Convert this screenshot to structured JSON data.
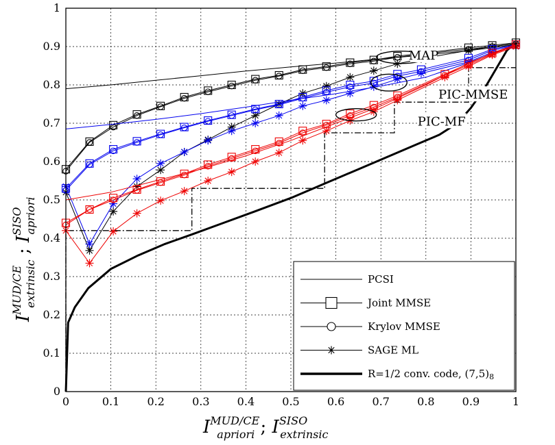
{
  "chart_data": {
    "type": "line",
    "xlim": [
      0,
      1
    ],
    "ylim": [
      0,
      1
    ],
    "grid": true,
    "legend_position": "bottom-right",
    "x_ticks": [
      "0",
      "0.1",
      "0.2",
      "0.3",
      "0.4",
      "0.5",
      "0.6",
      "0.7",
      "0.8",
      "0.9",
      "1"
    ],
    "y_ticks": [
      "0",
      "0.1",
      "0.2",
      "0.3",
      "0.4",
      "0.5",
      "0.6",
      "0.7",
      "0.8",
      "0.9",
      "1"
    ],
    "xlabel": {
      "main": "I",
      "sup1": "MUD/CE",
      "sub1": "apriori",
      "sep": " ; ",
      "main2": "I",
      "sup2": "SISO",
      "sub2": "extrinsic"
    },
    "ylabel": {
      "main": "I",
      "sup1": "MUD/CE",
      "sub1": "extrinsic",
      "sep": " ; ",
      "main2": "I",
      "sup2": "SISO",
      "sub2": "apriori"
    },
    "legend": [
      {
        "label": "PCSI",
        "style": "thin"
      },
      {
        "label": "Joint MMSE",
        "style": "square"
      },
      {
        "label": "Krylov MMSE",
        "style": "circle"
      },
      {
        "label": "SAGE ML",
        "style": "star"
      },
      {
        "label": "R=1/2 conv. code, (7,5)",
        "label_sub": "8",
        "style": "thick"
      }
    ],
    "annotations": [
      {
        "label": "MAP",
        "x": 0.795,
        "y": 0.875,
        "ellipse": [
          0.745,
          0.872,
          0.055,
          0.016
        ]
      },
      {
        "label": "PIC-MMSE",
        "x": 0.905,
        "y": 0.773,
        "ellipse": [
          0.718,
          0.806,
          0.04,
          0.022
        ]
      },
      {
        "label": "PIC-MF",
        "x": 0.835,
        "y": 0.703,
        "ellipse": [
          0.645,
          0.722,
          0.045,
          0.016
        ]
      }
    ],
    "colors": {
      "black": "#000000",
      "blue": "#0000ee",
      "red": "#ee0000"
    },
    "code_curve": {
      "x": [
        0,
        0.005,
        0.02,
        0.05,
        0.1,
        0.16,
        0.22,
        0.28,
        0.35,
        0.42,
        0.5,
        0.58,
        0.65,
        0.72,
        0.78,
        0.83,
        0.87,
        0.9,
        0.93,
        0.96,
        0.98,
        1.0
      ],
      "y": [
        0,
        0.18,
        0.22,
        0.27,
        0.32,
        0.355,
        0.385,
        0.41,
        0.44,
        0.47,
        0.505,
        0.545,
        0.58,
        0.615,
        0.645,
        0.67,
        0.7,
        0.74,
        0.79,
        0.85,
        0.89,
        0.91
      ]
    },
    "staircase": {
      "x": [
        0,
        0,
        0.28,
        0.28,
        0.575,
        0.575,
        0.73,
        0.73,
        0.895,
        0.895,
        1.0
      ],
      "y": [
        0,
        0.42,
        0.42,
        0.53,
        0.53,
        0.675,
        0.675,
        0.755,
        0.755,
        0.845,
        0.845
      ]
    },
    "series": [
      {
        "color": "black",
        "marker": "none",
        "x": [
          0,
          0.1,
          0.2,
          0.3,
          0.4,
          0.5,
          0.6,
          0.7,
          0.8,
          0.9,
          1.0
        ],
        "y": [
          0.79,
          0.8,
          0.812,
          0.824,
          0.836,
          0.847,
          0.857,
          0.868,
          0.878,
          0.89,
          0.905
        ]
      },
      {
        "color": "black",
        "marker": "square",
        "x": [
          0,
          0.0526,
          0.1053,
          0.1579,
          0.2105,
          0.2632,
          0.3158,
          0.3684,
          0.4211,
          0.4737,
          0.5263,
          0.5789,
          0.6316,
          0.6842,
          0.7368,
          0.7895,
          0.8947,
          0.9474,
          1.0
        ],
        "y": [
          0.58,
          0.652,
          0.695,
          0.723,
          0.745,
          0.768,
          0.785,
          0.8,
          0.815,
          0.825,
          0.84,
          0.848,
          0.858,
          0.865,
          0.875,
          0.882,
          0.897,
          0.903,
          0.91
        ]
      },
      {
        "color": "black",
        "marker": "circle",
        "x": [
          0,
          0.0526,
          0.1053,
          0.1579,
          0.2105,
          0.2632,
          0.3158,
          0.3684,
          0.4211,
          0.4737,
          0.5263,
          0.5789,
          0.6316,
          0.6842,
          0.7368,
          0.7895,
          0.8947,
          0.9474,
          1.0
        ],
        "y": [
          0.575,
          0.65,
          0.69,
          0.72,
          0.743,
          0.765,
          0.782,
          0.797,
          0.812,
          0.823,
          0.837,
          0.845,
          0.855,
          0.862,
          0.872,
          0.88,
          0.893,
          0.9,
          0.907
        ]
      },
      {
        "color": "black",
        "marker": "star",
        "x": [
          0,
          0.0526,
          0.1053,
          0.1579,
          0.2105,
          0.2632,
          0.3158,
          0.3684,
          0.4211,
          0.4737,
          0.5263,
          0.5789,
          0.6316,
          0.6842,
          0.7368,
          0.7895,
          0.8947,
          0.9474,
          1.0
        ],
        "y": [
          0.52,
          0.368,
          0.47,
          0.535,
          0.578,
          0.625,
          0.657,
          0.69,
          0.72,
          0.75,
          0.778,
          0.797,
          0.82,
          0.837,
          0.855,
          0.868,
          0.89,
          0.9,
          0.908
        ]
      },
      {
        "color": "blue",
        "marker": "none",
        "x": [
          0,
          0.1,
          0.2,
          0.3,
          0.4,
          0.5,
          0.6,
          0.7,
          0.8,
          0.9,
          1.0
        ],
        "y": [
          0.685,
          0.697,
          0.71,
          0.725,
          0.742,
          0.76,
          0.777,
          0.797,
          0.82,
          0.86,
          0.905
        ]
      },
      {
        "color": "blue",
        "marker": "square",
        "x": [
          0,
          0.0526,
          0.1053,
          0.1579,
          0.2105,
          0.2632,
          0.3158,
          0.3684,
          0.4211,
          0.4737,
          0.5263,
          0.5789,
          0.6316,
          0.6842,
          0.7368,
          0.7895,
          0.8947,
          0.9474,
          1.0
        ],
        "y": [
          0.53,
          0.595,
          0.632,
          0.653,
          0.672,
          0.69,
          0.707,
          0.722,
          0.737,
          0.75,
          0.768,
          0.785,
          0.8,
          0.81,
          0.828,
          0.84,
          0.87,
          0.893,
          0.905
        ]
      },
      {
        "color": "blue",
        "marker": "circle",
        "x": [
          0,
          0.0526,
          0.1053,
          0.1579,
          0.2105,
          0.2632,
          0.3158,
          0.3684,
          0.4211,
          0.4737,
          0.5263,
          0.5789,
          0.6316,
          0.6842,
          0.7368,
          0.7895,
          0.8947,
          0.9474,
          1.0
        ],
        "y": [
          0.525,
          0.592,
          0.628,
          0.65,
          0.67,
          0.688,
          0.705,
          0.72,
          0.735,
          0.748,
          0.765,
          0.781,
          0.795,
          0.805,
          0.823,
          0.835,
          0.865,
          0.89,
          0.903
        ]
      },
      {
        "color": "blue",
        "marker": "star",
        "x": [
          0,
          0.0526,
          0.1053,
          0.1579,
          0.2105,
          0.2632,
          0.3158,
          0.3684,
          0.4211,
          0.4737,
          0.5263,
          0.5789,
          0.6316,
          0.6842,
          0.7368,
          0.7895,
          0.8947,
          0.9474,
          1.0
        ],
        "y": [
          0.535,
          0.385,
          0.49,
          0.555,
          0.595,
          0.625,
          0.655,
          0.68,
          0.7,
          0.72,
          0.745,
          0.76,
          0.778,
          0.795,
          0.815,
          0.83,
          0.86,
          0.885,
          0.9
        ]
      },
      {
        "color": "red",
        "marker": "none",
        "x": [
          0,
          0.1,
          0.2,
          0.3,
          0.4,
          0.5,
          0.6,
          0.7,
          0.8,
          0.9,
          1.0
        ],
        "y": [
          0.5,
          0.52,
          0.55,
          0.58,
          0.615,
          0.655,
          0.7,
          0.745,
          0.8,
          0.86,
          0.905
        ]
      },
      {
        "color": "red",
        "marker": "square",
        "x": [
          0,
          0.0526,
          0.1053,
          0.1579,
          0.2105,
          0.2632,
          0.3158,
          0.3684,
          0.4211,
          0.4737,
          0.5263,
          0.5789,
          0.6316,
          0.6842,
          0.7368,
          0.8421,
          0.8947,
          0.9474,
          1.0
        ],
        "y": [
          0.44,
          0.475,
          0.505,
          0.527,
          0.548,
          0.568,
          0.592,
          0.612,
          0.632,
          0.652,
          0.68,
          0.698,
          0.725,
          0.747,
          0.772,
          0.828,
          0.855,
          0.883,
          0.905
        ]
      },
      {
        "color": "red",
        "marker": "circle",
        "x": [
          0,
          0.0526,
          0.1053,
          0.1579,
          0.2105,
          0.2632,
          0.3158,
          0.3684,
          0.4211,
          0.4737,
          0.5263,
          0.5789,
          0.6316,
          0.6842,
          0.7368,
          0.8421,
          0.8947,
          0.9474,
          1.0
        ],
        "y": [
          0.435,
          0.475,
          0.5,
          0.525,
          0.545,
          0.565,
          0.588,
          0.608,
          0.628,
          0.648,
          0.675,
          0.695,
          0.72,
          0.742,
          0.768,
          0.825,
          0.852,
          0.88,
          0.903
        ]
      },
      {
        "color": "red",
        "marker": "star",
        "x": [
          0,
          0.0526,
          0.1053,
          0.1579,
          0.2105,
          0.2632,
          0.3158,
          0.3684,
          0.4211,
          0.4737,
          0.5263,
          0.5789,
          0.6316,
          0.6842,
          0.7368,
          0.8421,
          0.8947,
          0.9474,
          1.0
        ],
        "y": [
          0.42,
          0.335,
          0.418,
          0.465,
          0.498,
          0.523,
          0.55,
          0.573,
          0.6,
          0.623,
          0.655,
          0.68,
          0.707,
          0.73,
          0.76,
          0.82,
          0.848,
          0.878,
          0.9
        ]
      }
    ]
  }
}
